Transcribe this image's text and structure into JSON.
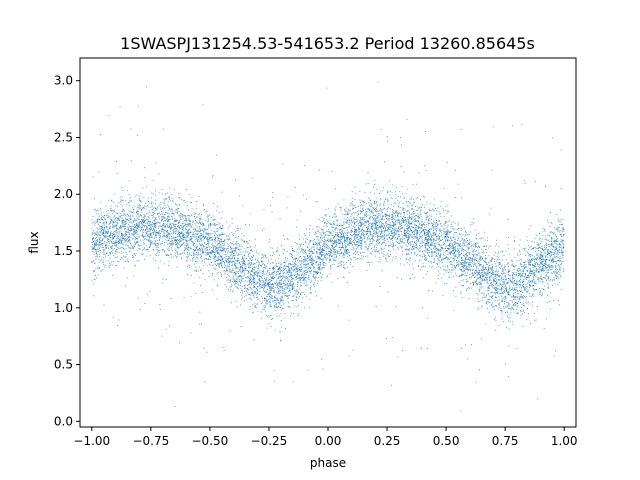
{
  "chart_data": {
    "type": "scatter",
    "title": "1SWASPJ131254.53-541653.2 Period 13260.85645s",
    "xlabel": "phase",
    "ylabel": "flux",
    "xlim": [
      -1.05,
      1.05
    ],
    "ylim": [
      -0.05,
      3.2
    ],
    "xticks": [
      -1.0,
      -0.75,
      -0.5,
      -0.25,
      0.0,
      0.25,
      0.5,
      0.75,
      1.0
    ],
    "xtick_labels": [
      "−1.00",
      "−0.75",
      "−0.50",
      "−0.25",
      "0.00",
      "0.25",
      "0.50",
      "0.75",
      "1.00"
    ],
    "yticks": [
      0.0,
      0.5,
      1.0,
      1.5,
      2.0,
      2.5,
      3.0
    ],
    "ytick_labels": [
      "0.0",
      "0.5",
      "1.0",
      "1.5",
      "2.0",
      "2.5",
      "3.0"
    ],
    "grid": false,
    "marker_color": "#1f77b4",
    "series": [
      {
        "x": [
          -1.0,
          -0.9,
          -0.8,
          -0.7,
          -0.6,
          -0.5,
          -0.4,
          -0.3,
          -0.25,
          -0.2,
          -0.1,
          0.0,
          0.1,
          0.2,
          0.3,
          0.4,
          0.5,
          0.6,
          0.7,
          0.75,
          0.8,
          0.9,
          1.0
        ],
        "y": [
          1.58,
          1.66,
          1.72,
          1.72,
          1.65,
          1.56,
          1.42,
          1.24,
          1.18,
          1.2,
          1.38,
          1.55,
          1.66,
          1.72,
          1.72,
          1.65,
          1.56,
          1.42,
          1.24,
          1.18,
          1.2,
          1.38,
          1.55
        ]
      }
    ]
  }
}
